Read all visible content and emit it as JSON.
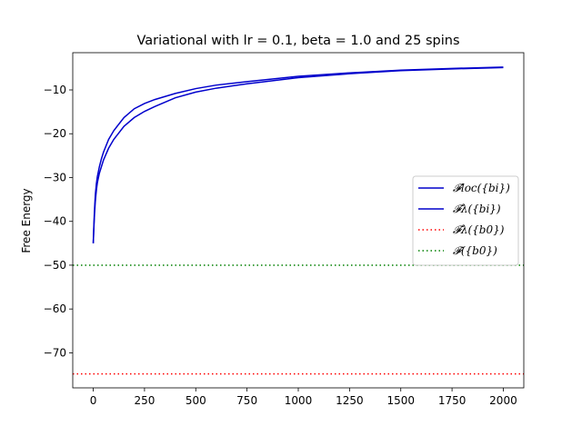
{
  "chart_data": {
    "type": "line",
    "title": "Variational with lr = 0.1, beta = 1.0 and 25 spins",
    "xlabel": "",
    "ylabel": "Free Energy",
    "xlim": [
      -100,
      2100
    ],
    "ylim": [
      -78,
      -1.5
    ],
    "xticks": [
      0,
      250,
      500,
      750,
      1000,
      1250,
      1500,
      1750,
      2000
    ],
    "yticks": [
      -70,
      -60,
      -50,
      -40,
      -30,
      -20,
      -10
    ],
    "ytick_labels": [
      "−70",
      "−60",
      "−50",
      "−40",
      "−30",
      "−20",
      "−10"
    ],
    "grid": false,
    "legend_position": "center-right",
    "series": [
      {
        "name": "𝓕loc({bi})",
        "color": "#0000cc",
        "style": "solid",
        "x": [
          0,
          3,
          6,
          10,
          15,
          20,
          30,
          40,
          50,
          75,
          100,
          150,
          200,
          250,
          300,
          400,
          500,
          600,
          750,
          1000,
          1250,
          1500,
          1750,
          2000
        ],
        "y": [
          -45,
          -41,
          -37.5,
          -34,
          -31.5,
          -29.8,
          -27.5,
          -25.7,
          -24.2,
          -21.3,
          -19.3,
          -16.3,
          -14.3,
          -13.1,
          -12.2,
          -10.8,
          -9.7,
          -8.9,
          -8.1,
          -6.9,
          -6.1,
          -5.5,
          -5.1,
          -4.8
        ]
      },
      {
        "name": "𝓕λ({bi})",
        "color": "#0000cc",
        "style": "solid",
        "x": [
          0,
          3,
          6,
          10,
          15,
          20,
          30,
          40,
          50,
          75,
          100,
          150,
          200,
          250,
          300,
          400,
          500,
          600,
          750,
          1000,
          1250,
          1500,
          1750,
          2000
        ],
        "y": [
          -45,
          -41.5,
          -38.5,
          -35.5,
          -33,
          -31.2,
          -29,
          -27.5,
          -26,
          -23.3,
          -21.3,
          -18.3,
          -16.3,
          -14.9,
          -13.8,
          -11.8,
          -10.5,
          -9.6,
          -8.6,
          -7.2,
          -6.3,
          -5.6,
          -5.2,
          -4.9
        ]
      },
      {
        "name": "𝓕λ({b0})",
        "color": "#ff0000",
        "style": "dotted",
        "y_constant": -74.8
      },
      {
        "name": "𝓕({b0})",
        "color": "#008000",
        "style": "dotted",
        "y_constant": -50.0
      }
    ]
  }
}
